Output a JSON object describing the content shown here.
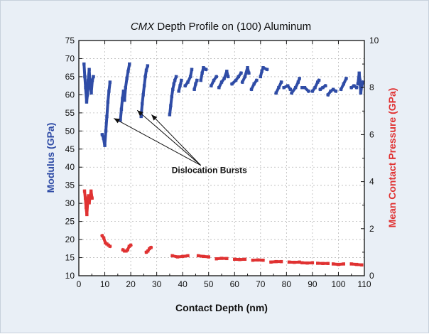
{
  "chart_data": {
    "type": "scatter",
    "title_italic": "CMX",
    "title_rest": " Depth Profile on (100) Aluminum",
    "xlabel": "Contact Depth (nm)",
    "ylabel_left": "Modulus (GPa)",
    "ylabel_right": "Mean Contact Pressure (GPa)",
    "xlim": [
      0,
      110
    ],
    "ylim_left": [
      10,
      75
    ],
    "ylim_right": [
      0,
      10
    ],
    "x_ticks": [
      0,
      10,
      20,
      30,
      40,
      50,
      60,
      70,
      80,
      90,
      100,
      110
    ],
    "y_left_ticks": [
      10,
      15,
      20,
      25,
      30,
      35,
      40,
      45,
      50,
      55,
      60,
      65,
      70,
      75
    ],
    "y_right_ticks": [
      0,
      2,
      4,
      6,
      8,
      10
    ],
    "grid": true,
    "annotation": {
      "text": "Dislocation Bursts",
      "anchor": [
        47,
        40.5
      ],
      "arrow_targets": [
        [
          13.5,
          53.5
        ],
        [
          22.5,
          55.7
        ],
        [
          28,
          54.5
        ]
      ]
    },
    "series": [
      {
        "axis": "left",
        "color": "#2f4ca6",
        "segments": [
          [
            [
              2.0,
              68.5
            ],
            [
              2.3,
              65.0
            ],
            [
              2.6,
              62.0
            ],
            [
              3.0,
              58.0
            ],
            [
              3.3,
              60.0
            ],
            [
              3.6,
              64.0
            ],
            [
              4.0,
              67.0
            ],
            [
              4.4,
              62.0
            ],
            [
              4.8,
              60.5
            ],
            [
              5.2,
              64.0
            ],
            [
              5.6,
              65.0
            ]
          ],
          [
            [
              9.0,
              49.0
            ],
            [
              9.5,
              48.0
            ],
            [
              10.0,
              46.0
            ],
            [
              10.4,
              50.0
            ],
            [
              10.8,
              54.0
            ],
            [
              11.2,
              58.0
            ],
            [
              11.6,
              61.0
            ],
            [
              12.0,
              63.5
            ]
          ],
          [
            [
              16.0,
              53.0
            ],
            [
              16.4,
              56.0
            ],
            [
              16.8,
              59.0
            ],
            [
              17.2,
              61.0
            ],
            [
              17.6,
              58.5
            ],
            [
              18.0,
              62.0
            ],
            [
              18.5,
              64.5
            ],
            [
              19.0,
              66.5
            ],
            [
              19.5,
              68.5
            ]
          ],
          [
            [
              24.0,
              54.0
            ],
            [
              24.4,
              57.5
            ],
            [
              24.8,
              60.0
            ],
            [
              25.2,
              62.5
            ],
            [
              25.6,
              65.0
            ],
            [
              26.0,
              66.8
            ],
            [
              26.5,
              68.0
            ]
          ],
          [
            [
              35.0,
              54.5
            ],
            [
              35.4,
              57.0
            ],
            [
              35.8,
              59.5
            ],
            [
              36.2,
              61.5
            ],
            [
              36.6,
              63.0
            ],
            [
              37.0,
              64.0
            ],
            [
              37.5,
              65.0
            ]
          ],
          [
            [
              38.5,
              61.0
            ],
            [
              39.0,
              62.5
            ],
            [
              39.5,
              64.0
            ]
          ],
          [
            [
              41.0,
              62.5
            ],
            [
              42.0,
              63.5
            ],
            [
              43.0,
              65.0
            ],
            [
              43.5,
              67.0
            ]
          ],
          [
            [
              44.5,
              61.5
            ],
            [
              45.0,
              63.0
            ],
            [
              45.5,
              64.0
            ]
          ],
          [
            [
              47.0,
              64.0
            ],
            [
              47.5,
              66.0
            ],
            [
              48.0,
              67.5
            ],
            [
              49.0,
              67.0
            ]
          ],
          [
            [
              51.0,
              62.5
            ],
            [
              52.0,
              64.0
            ],
            [
              53.0,
              65.0
            ]
          ],
          [
            [
              54.0,
              62.0
            ],
            [
              55.0,
              63.5
            ],
            [
              56.0,
              64.5
            ],
            [
              57.0,
              66.5
            ],
            [
              57.5,
              65.0
            ]
          ],
          [
            [
              59.0,
              63.0
            ],
            [
              60.5,
              64.0
            ],
            [
              61.5,
              65.0
            ],
            [
              62.5,
              66.0
            ]
          ],
          [
            [
              63.0,
              63.5
            ],
            [
              64.0,
              65.0
            ],
            [
              65.0,
              67.5
            ],
            [
              65.5,
              66.0
            ]
          ],
          [
            [
              66.5,
              61.5
            ],
            [
              67.5,
              63.0
            ],
            [
              68.5,
              64.0
            ]
          ],
          [
            [
              70.0,
              65.0
            ],
            [
              70.5,
              66.5
            ],
            [
              71.0,
              67.5
            ],
            [
              72.5,
              67.0
            ]
          ],
          [
            [
              76.0,
              60.5
            ],
            [
              77.0,
              62.0
            ],
            [
              78.0,
              63.5
            ]
          ],
          [
            [
              79.0,
              62.0
            ],
            [
              80.5,
              62.5
            ],
            [
              81.5,
              61.5
            ]
          ],
          [
            [
              82.0,
              60.5
            ],
            [
              83.5,
              62.0
            ],
            [
              84.5,
              63.5
            ],
            [
              85.0,
              64.5
            ]
          ],
          [
            [
              86.0,
              62.0
            ],
            [
              87.0,
              62.0
            ],
            [
              88.5,
              61.0
            ]
          ],
          [
            [
              90.0,
              61.0
            ],
            [
              91.0,
              62.0
            ],
            [
              92.0,
              63.5
            ],
            [
              92.5,
              64.0
            ]
          ],
          [
            [
              93.0,
              61.5
            ],
            [
              94.0,
              62.0
            ],
            [
              95.0,
              62.5
            ]
          ],
          [
            [
              96.0,
              60.0
            ],
            [
              97.0,
              61.0
            ],
            [
              98.0,
              61.5
            ],
            [
              99.0,
              61.0
            ]
          ],
          [
            [
              101.0,
              61.5
            ],
            [
              102.0,
              63.0
            ],
            [
              103.0,
              64.5
            ]
          ],
          [
            [
              105.0,
              62.0
            ],
            [
              106.0,
              62.5
            ],
            [
              107.0,
              62.0
            ]
          ],
          [
            [
              107.5,
              63.0
            ],
            [
              108.0,
              66.0
            ],
            [
              108.3,
              64.0
            ],
            [
              108.6,
              60.5
            ],
            [
              109.0,
              62.5
            ],
            [
              109.5,
              63.5
            ]
          ]
        ]
      },
      {
        "axis": "right",
        "color": "#e03232",
        "segments": [
          [
            [
              2.2,
              3.6
            ],
            [
              2.5,
              3.3
            ],
            [
              2.8,
              2.9
            ],
            [
              3.1,
              2.6
            ],
            [
              3.4,
              3.1
            ],
            [
              3.7,
              3.4
            ],
            [
              4.0,
              3.1
            ],
            [
              4.3,
              3.3
            ],
            [
              4.7,
              3.6
            ],
            [
              5.1,
              3.3
            ]
          ],
          [
            [
              9.0,
              1.7
            ],
            [
              9.6,
              1.6
            ],
            [
              10.2,
              1.4
            ],
            [
              10.8,
              1.35
            ],
            [
              11.4,
              1.3
            ],
            [
              12.0,
              1.25
            ]
          ],
          [
            [
              17.0,
              1.1
            ],
            [
              17.6,
              1.05
            ],
            [
              18.2,
              1.05
            ],
            [
              18.8,
              1.1
            ],
            [
              19.4,
              1.25
            ],
            [
              20.0,
              1.3
            ]
          ],
          [
            [
              26.0,
              1.0
            ],
            [
              26.6,
              1.05
            ],
            [
              27.2,
              1.15
            ],
            [
              27.8,
              1.2
            ]
          ],
          [
            [
              36.0,
              0.85
            ],
            [
              38.0,
              0.8
            ],
            [
              40.0,
              0.82
            ],
            [
              42.0,
              0.85
            ]
          ],
          [
            [
              46.0,
              0.85
            ],
            [
              48.0,
              0.82
            ],
            [
              50.0,
              0.8
            ]
          ],
          [
            [
              53.0,
              0.72
            ],
            [
              55.0,
              0.74
            ],
            [
              57.0,
              0.73
            ]
          ],
          [
            [
              60.0,
              0.7
            ],
            [
              62.0,
              0.69
            ],
            [
              64.0,
              0.7
            ]
          ],
          [
            [
              67.0,
              0.66
            ],
            [
              69.0,
              0.67
            ],
            [
              71.0,
              0.66
            ]
          ],
          [
            [
              74.0,
              0.58
            ],
            [
              76.0,
              0.6
            ],
            [
              78.0,
              0.6
            ]
          ],
          [
            [
              81.0,
              0.58
            ],
            [
              83.0,
              0.57
            ],
            [
              85.0,
              0.58
            ]
          ],
          [
            [
              86.0,
              0.55
            ],
            [
              88.0,
              0.54
            ],
            [
              90.0,
              0.55
            ]
          ],
          [
            [
              92.0,
              0.53
            ],
            [
              94.0,
              0.52
            ],
            [
              96.0,
              0.52
            ]
          ],
          [
            [
              98.0,
              0.5
            ],
            [
              100.0,
              0.48
            ],
            [
              102.0,
              0.5
            ]
          ],
          [
            [
              105.0,
              0.5
            ],
            [
              107.0,
              0.48
            ],
            [
              109.0,
              0.46
            ]
          ]
        ]
      }
    ]
  }
}
